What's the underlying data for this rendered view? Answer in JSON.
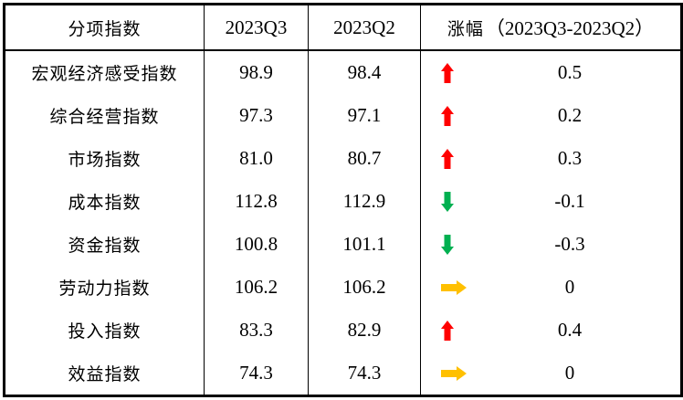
{
  "table": {
    "headers": {
      "category": "分项指数",
      "q3": "2023Q3",
      "q2": "2023Q2",
      "change_prefix": "涨幅",
      "change_range": "（2023Q3-2023Q2）"
    },
    "rows": [
      {
        "label": "宏观经济感受指数",
        "q3": "98.9",
        "q2": "98.4",
        "direction": "up",
        "change": "0.5"
      },
      {
        "label": "综合经营指数",
        "q3": "97.3",
        "q2": "97.1",
        "direction": "up",
        "change": "0.2"
      },
      {
        "label": "市场指数",
        "q3": "81.0",
        "q2": "80.7",
        "direction": "up",
        "change": "0.3"
      },
      {
        "label": "成本指数",
        "q3": "112.8",
        "q2": "112.9",
        "direction": "down",
        "change": "-0.1"
      },
      {
        "label": "资金指数",
        "q3": "100.8",
        "q2": "101.1",
        "direction": "down",
        "change": "-0.3"
      },
      {
        "label": "劳动力指数",
        "q3": "106.2",
        "q2": "106.2",
        "direction": "flat",
        "change": "0"
      },
      {
        "label": "投入指数",
        "q3": "83.3",
        "q2": "82.9",
        "direction": "up",
        "change": "0.4"
      },
      {
        "label": "效益指数",
        "q3": "74.3",
        "q2": "74.3",
        "direction": "flat",
        "change": "0"
      }
    ]
  },
  "colors": {
    "up": "#FF0000",
    "down": "#00B050",
    "flat": "#FFC000",
    "border": "#000000",
    "background": "#FFFFFF",
    "text": "#000000"
  },
  "icons": {
    "up": "up-arrow-icon",
    "down": "down-arrow-icon",
    "flat": "right-arrow-icon"
  },
  "chart_data": {
    "type": "table",
    "title": "分项指数环比变化表",
    "columns": [
      "分项指数",
      "2023Q3",
      "2023Q2",
      "涨幅（2023Q3-2023Q2）"
    ],
    "rows": [
      [
        "宏观经济感受指数",
        98.9,
        98.4,
        0.5
      ],
      [
        "综合经营指数",
        97.3,
        97.1,
        0.2
      ],
      [
        "市场指数",
        81.0,
        80.7,
        0.3
      ],
      [
        "成本指数",
        112.8,
        112.9,
        -0.1
      ],
      [
        "资金指数",
        100.8,
        101.1,
        -0.3
      ],
      [
        "劳动力指数",
        106.2,
        106.2,
        0
      ],
      [
        "投入指数",
        83.3,
        82.9,
        0.4
      ],
      [
        "效益指数",
        74.3,
        74.3,
        0
      ]
    ],
    "layout_hints": {
      "grid": "outer border, header separator and column separators only; no row separators",
      "change_column_icons": "up=red block arrow, down=green block arrow, flat=gold right block arrow"
    }
  }
}
